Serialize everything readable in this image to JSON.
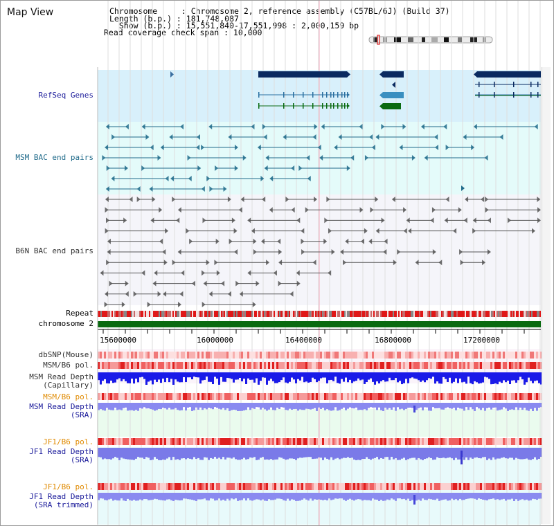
{
  "title": "Map View",
  "info": {
    "line1": "Chromosome     : Chromosome 2, reference assembly (C57BL/6J) (Build 37)",
    "line2": "Length (b.p.) : 181,748,087",
    "line3": "  Show (b.p.) : 15,551,840-17,551,998 : 2,000,159 bp",
    "line4": "Read coverage check span : 10,000"
  },
  "tracks": {
    "refseq": "RefSeq Genes",
    "msm_bac": "MSM BAC end pairs",
    "b6n_bac": "B6N BAC end pairs",
    "repeat": "Repeat",
    "chromosome": "chromosome 2",
    "dbsnp": "dbSNP(Mouse)",
    "msm_b6_pol": "MSM/B6 pol.",
    "msm_read_depth_cap_1": "MSM Read Depth",
    "msm_read_depth_cap_2": "(Capillary)",
    "msm_b6_pol_2": "MSM/B6 pol.",
    "msm_read_depth_sra_1": "MSM Read Depth",
    "msm_read_depth_sra_2": "(SRA)",
    "jf1_b6_pol": "JF1/B6 pol.",
    "jf1_read_depth_sra_1": "JF1 Read Depth",
    "jf1_read_depth_sra_2": "(SRA)",
    "jf1_b6_pol_2": "JF1/B6 pol.",
    "jf1_read_depth_trim_1": "JF1 Read Depth",
    "jf1_read_depth_trim_2": "(SRA trimmed)"
  },
  "axis_ticks": [
    "15600000",
    "16000000",
    "16400000",
    "16800000",
    "17200000"
  ],
  "colors": {
    "navy_label": "#1a1a9a",
    "msm_label": "#1f6a8a",
    "orange_label": "#e08a00",
    "refseq_bg": "#d8f0fb",
    "msm_bg": "#e4fbfa",
    "gene_navy": "#0a2a60",
    "gene_teal": "#3a8fc0",
    "gene_green": "#0a6a10",
    "chromosome_green": "#0a6a10",
    "repeat_red": "#e01818",
    "read_depth_blue": "#1a1ae8",
    "read_depth_light": "#8a8af0"
  }
}
